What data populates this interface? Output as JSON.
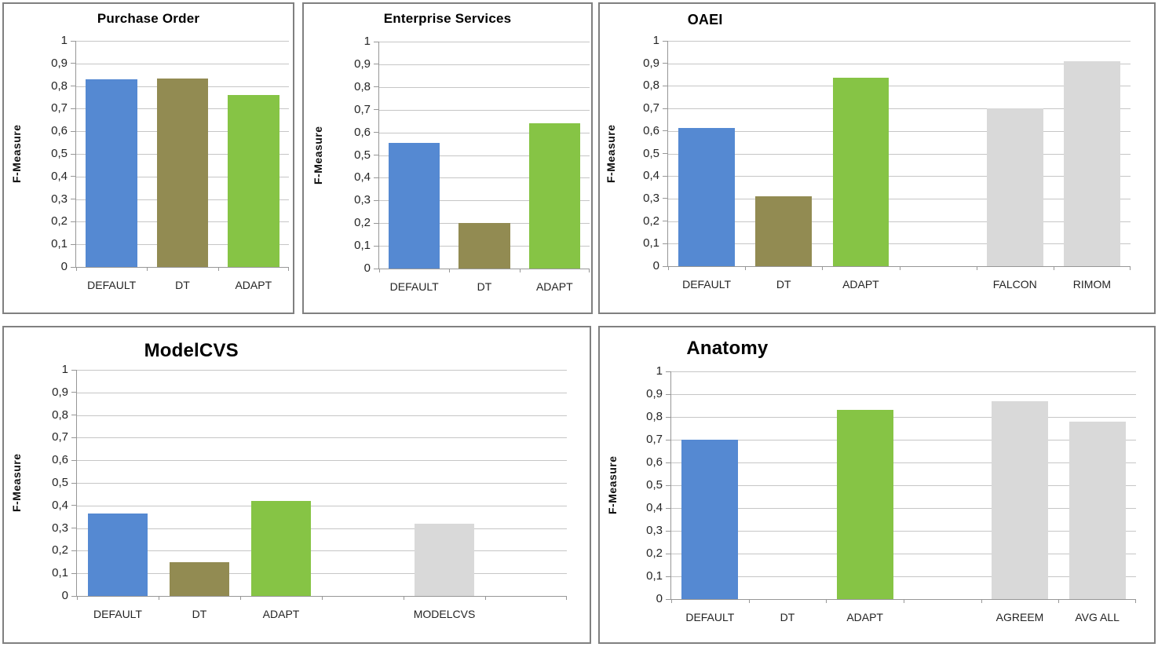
{
  "figure": {
    "description_label": "F-Measure comparison bar charts",
    "palette": {
      "default_blue": "#5589D2",
      "dt_olive": "#928B52",
      "adapt_green": "#86C445",
      "reference_gray": "#D9D9D9",
      "gridline_gray": "#C6C6C6",
      "axis_gray": "#979797",
      "panel_border_gray": "#808080"
    }
  },
  "chart_data": [
    {
      "type": "bar",
      "title": "Purchase Order",
      "ylabel": "F-Measure",
      "ylim": [
        0,
        1
      ],
      "grid": true,
      "legend": "none",
      "ytick_labels": [
        "1",
        "0,9",
        "0,8",
        "0,7",
        "0,6",
        "0,5",
        "0,4",
        "0,3",
        "0,2",
        "0,1",
        "0"
      ],
      "categories": [
        "DEFAULT",
        "DT",
        "ADAPT"
      ],
      "values": [
        0.83,
        0.835,
        0.76
      ],
      "bar_colors": [
        "#5589D2",
        "#928B52",
        "#86C445"
      ]
    },
    {
      "type": "bar",
      "title": "Enterprise Services",
      "ylabel": "F-Measure",
      "ylim": [
        0,
        1
      ],
      "grid": true,
      "legend": "none",
      "ytick_labels": [
        "1",
        "0,9",
        "0,8",
        "0,7",
        "0,6",
        "0,5",
        "0,4",
        "0,3",
        "0,2",
        "0,1",
        "0"
      ],
      "categories": [
        "DEFAULT",
        "DT",
        "ADAPT"
      ],
      "values": [
        0.555,
        0.2,
        0.64
      ],
      "bar_colors": [
        "#5589D2",
        "#928B52",
        "#86C445"
      ]
    },
    {
      "type": "bar",
      "title": "OAEI",
      "ylabel": "F-Measure",
      "ylim": [
        0,
        1
      ],
      "grid": true,
      "legend": "none",
      "ytick_labels": [
        "1",
        "0,9",
        "0,8",
        "0,7",
        "0,6",
        "0,5",
        "0,4",
        "0,3",
        "0,2",
        "0,1",
        "0"
      ],
      "categories": [
        "DEFAULT",
        "DT",
        "ADAPT",
        "",
        "FALCON",
        "RIMOM"
      ],
      "values": [
        0.615,
        0.31,
        0.835,
        null,
        0.7,
        0.91
      ],
      "bar_colors": [
        "#5589D2",
        "#928B52",
        "#86C445",
        null,
        "#D9D9D9",
        "#D9D9D9"
      ]
    },
    {
      "type": "bar",
      "title": "ModelCVS",
      "ylabel": "F-Measure",
      "ylim": [
        0,
        1
      ],
      "grid": true,
      "legend": "none",
      "ytick_labels": [
        "1",
        "0,9",
        "0,8",
        "0,7",
        "0,6",
        "0,5",
        "0,4",
        "0,3",
        "0,2",
        "0,1",
        "0"
      ],
      "categories": [
        "DEFAULT",
        "DT",
        "ADAPT",
        "",
        "MODELCVS",
        ""
      ],
      "values": [
        0.365,
        0.15,
        0.42,
        null,
        0.32,
        null
      ],
      "bar_colors": [
        "#5589D2",
        "#928B52",
        "#86C445",
        null,
        "#D9D9D9",
        null
      ]
    },
    {
      "type": "bar",
      "title": "Anatomy",
      "ylabel": "F-Measure",
      "ylim": [
        0,
        1
      ],
      "grid": true,
      "legend": "none",
      "ytick_labels": [
        "1",
        "0,9",
        "0,8",
        "0,7",
        "0,6",
        "0,5",
        "0,4",
        "0,3",
        "0,2",
        "0,1",
        "0"
      ],
      "categories": [
        "DEFAULT",
        "DT",
        "ADAPT",
        "",
        "AGREEM",
        "AVG ALL"
      ],
      "values": [
        0.7,
        null,
        0.83,
        null,
        0.87,
        0.78
      ],
      "bar_colors": [
        "#5589D2",
        null,
        "#86C445",
        null,
        "#D9D9D9",
        "#D9D9D9"
      ]
    }
  ]
}
